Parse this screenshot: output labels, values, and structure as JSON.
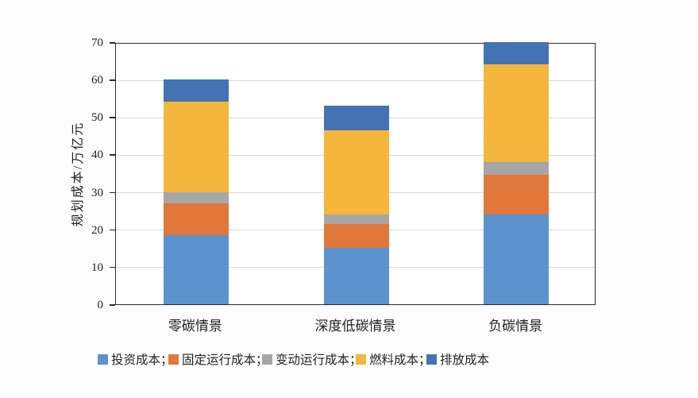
{
  "chart_data": {
    "type": "bar",
    "stacked": true,
    "title": "",
    "categories": [
      "零碳情景",
      "深度低碳情景",
      "负碳情景"
    ],
    "series": [
      {
        "name": "投资成本",
        "key": "investment-cost",
        "color": "#5B93CE",
        "values": [
          18.5,
          15.0,
          24.0
        ]
      },
      {
        "name": "固定运行成本",
        "key": "fixed-operating-cost",
        "color": "#E2773C",
        "values": [
          8.5,
          6.5,
          10.5
        ]
      },
      {
        "name": "变动运行成本",
        "key": "variable-operating-cost",
        "color": "#A6A6A6",
        "values": [
          3.0,
          2.5,
          3.5
        ]
      },
      {
        "name": "燃料成本",
        "key": "fuel-cost",
        "color": "#F5B63D",
        "values": [
          24.0,
          22.5,
          26.0
        ]
      },
      {
        "name": "排放成本",
        "key": "emission-cost",
        "color": "#4373B5",
        "values": [
          6.0,
          6.5,
          6.0
        ]
      }
    ],
    "stack_totals": [
      60,
      53,
      70
    ],
    "xlabel": "",
    "ylabel": "规划成本/万亿元",
    "ylim": [
      0,
      70
    ],
    "yticks": [
      0,
      10,
      20,
      30,
      40,
      50,
      60,
      70
    ],
    "grid": true,
    "legend_position": "bottom",
    "legend_labels": [
      "投资成本；",
      "固定运行成本；",
      "变动运行成本；",
      "燃料成本；",
      "排放成本"
    ]
  },
  "colors": {
    "axis": "#2b2b2b",
    "gridline": "#dadada",
    "text": "#1f1f1f",
    "background": "#fdfdfd"
  }
}
